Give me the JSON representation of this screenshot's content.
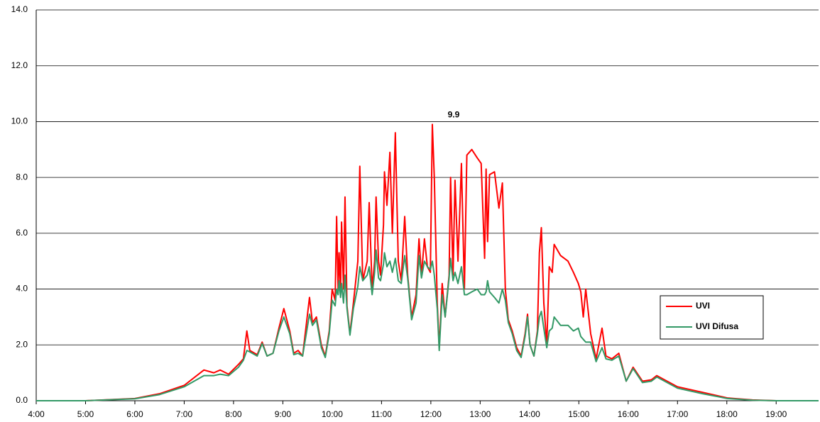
{
  "chart_data": {
    "type": "line",
    "x": [
      4.0,
      5.0,
      6.0,
      6.5,
      7.0,
      7.4,
      7.6,
      7.73,
      7.9,
      8.1,
      8.2,
      8.27,
      8.33,
      8.48,
      8.58,
      8.68,
      8.8,
      8.92,
      9.02,
      9.14,
      9.22,
      9.31,
      9.4,
      9.54,
      9.6,
      9.68,
      9.78,
      9.86,
      9.94,
      10.0,
      10.06,
      10.09,
      10.12,
      10.14,
      10.17,
      10.19,
      10.23,
      10.26,
      10.3,
      10.36,
      10.43,
      10.52,
      10.56,
      10.62,
      10.71,
      10.75,
      10.81,
      10.86,
      10.89,
      10.94,
      10.98,
      11.04,
      11.06,
      11.11,
      11.17,
      11.22,
      11.28,
      11.34,
      11.4,
      11.47,
      11.53,
      11.61,
      11.7,
      11.76,
      11.81,
      11.87,
      11.93,
      11.99,
      12.03,
      12.07,
      12.13,
      12.17,
      12.23,
      12.29,
      12.37,
      12.4,
      12.45,
      12.49,
      12.55,
      12.62,
      12.68,
      12.73,
      12.83,
      12.94,
      13.02,
      13.09,
      13.12,
      13.15,
      13.19,
      13.29,
      13.38,
      13.45,
      13.51,
      13.57,
      13.65,
      13.74,
      13.83,
      13.91,
      13.96,
      14.01,
      14.09,
      14.16,
      14.2,
      14.24,
      14.29,
      14.35,
      14.4,
      14.46,
      14.5,
      14.63,
      14.78,
      14.89,
      14.99,
      15.04,
      15.09,
      15.14,
      15.24,
      15.35,
      15.47,
      15.55,
      15.67,
      15.81,
      15.96,
      16.1,
      16.29,
      16.47,
      16.58,
      16.79,
      17.0,
      17.51,
      18.01,
      18.52,
      19.0,
      19.86
    ],
    "series": [
      {
        "name": "UVI",
        "color": "#ff0000",
        "values": [
          0,
          0,
          0.08,
          0.25,
          0.55,
          1.1,
          1.0,
          1.1,
          0.95,
          1.3,
          1.5,
          2.5,
          1.8,
          1.65,
          2.1,
          1.6,
          1.7,
          2.6,
          3.3,
          2.5,
          1.7,
          1.8,
          1.6,
          3.7,
          2.8,
          3.0,
          2.0,
          1.6,
          2.5,
          4.0,
          3.6,
          6.6,
          4.0,
          5.3,
          3.9,
          6.4,
          4.0,
          7.3,
          3.4,
          2.4,
          3.5,
          5.0,
          8.4,
          4.3,
          5.0,
          7.1,
          4.0,
          5.0,
          7.3,
          5.0,
          4.5,
          6.3,
          8.2,
          7.0,
          8.9,
          6.0,
          9.6,
          5.0,
          4.3,
          6.6,
          4.5,
          3.0,
          3.8,
          5.8,
          4.5,
          5.8,
          4.8,
          4.6,
          9.9,
          8.0,
          3.5,
          1.9,
          4.2,
          3.0,
          4.5,
          8.0,
          4.5,
          7.9,
          5.0,
          8.5,
          4.0,
          8.8,
          9.0,
          8.7,
          8.5,
          5.1,
          8.3,
          5.7,
          8.1,
          8.2,
          6.9,
          7.8,
          4.0,
          2.9,
          2.5,
          1.9,
          1.6,
          2.4,
          3.1,
          2.0,
          1.6,
          2.5,
          5.3,
          6.2,
          3.5,
          2.0,
          4.8,
          4.6,
          5.6,
          5.2,
          5.0,
          4.6,
          4.2,
          3.9,
          3.0,
          4.0,
          2.4,
          1.5,
          2.6,
          1.6,
          1.5,
          1.7,
          0.7,
          1.2,
          0.7,
          0.75,
          0.9,
          0.7,
          0.5,
          0.3,
          0.1,
          0.03,
          0,
          0
        ]
      },
      {
        "name": "UVI Difusa",
        "color": "#339966",
        "values": [
          0,
          0,
          0.07,
          0.22,
          0.5,
          0.9,
          0.9,
          0.95,
          0.9,
          1.2,
          1.45,
          1.8,
          1.75,
          1.6,
          2.05,
          1.6,
          1.7,
          2.5,
          3.0,
          2.4,
          1.65,
          1.7,
          1.6,
          3.1,
          2.7,
          2.9,
          1.9,
          1.55,
          2.4,
          3.6,
          3.4,
          4.0,
          3.8,
          4.3,
          3.7,
          4.2,
          3.5,
          4.5,
          3.3,
          2.35,
          3.3,
          4.1,
          4.8,
          4.3,
          4.5,
          4.8,
          3.8,
          4.6,
          5.4,
          4.4,
          4.3,
          4.9,
          5.3,
          4.8,
          5.0,
          4.6,
          5.1,
          4.3,
          4.2,
          5.2,
          4.4,
          2.9,
          3.5,
          5.2,
          4.4,
          5.0,
          4.8,
          4.7,
          5.0,
          4.5,
          3.3,
          1.8,
          3.8,
          3.0,
          4.4,
          5.1,
          4.3,
          4.6,
          4.2,
          4.8,
          3.8,
          3.8,
          3.9,
          4.0,
          3.8,
          3.8,
          3.9,
          4.3,
          3.9,
          3.7,
          3.5,
          4.0,
          3.6,
          2.8,
          2.4,
          1.8,
          1.55,
          2.3,
          3.0,
          2.0,
          1.6,
          2.4,
          3.0,
          3.2,
          2.6,
          1.9,
          2.5,
          2.6,
          3.0,
          2.7,
          2.7,
          2.5,
          2.6,
          2.3,
          2.2,
          2.1,
          2.1,
          1.4,
          1.9,
          1.5,
          1.45,
          1.6,
          0.7,
          1.15,
          0.65,
          0.7,
          0.85,
          0.65,
          0.45,
          0.25,
          0.08,
          0.02,
          0,
          0
        ]
      }
    ],
    "annotation": "9.9",
    "xlim": [
      4,
      19.86
    ],
    "xticks": [
      {
        "value": 4,
        "label": "4:00"
      },
      {
        "value": 5,
        "label": "5:00"
      },
      {
        "value": 6,
        "label": "6:00"
      },
      {
        "value": 7,
        "label": "7:00"
      },
      {
        "value": 8,
        "label": "8:00"
      },
      {
        "value": 9,
        "label": "9:00"
      },
      {
        "value": 10,
        "label": "10:00"
      },
      {
        "value": 11,
        "label": "11:00"
      },
      {
        "value": 12,
        "label": "12:00"
      },
      {
        "value": 13,
        "label": "13:00"
      },
      {
        "value": 14,
        "label": "14:00"
      },
      {
        "value": 15,
        "label": "15:00"
      },
      {
        "value": 16,
        "label": "16:00"
      },
      {
        "value": 17,
        "label": "17:00"
      },
      {
        "value": 18,
        "label": "18:00"
      },
      {
        "value": 19,
        "label": "19:00"
      }
    ],
    "ylim": [
      0,
      14
    ],
    "yticks": [
      {
        "value": 0,
        "label": "0.0"
      },
      {
        "value": 2,
        "label": "2.0"
      },
      {
        "value": 4,
        "label": "4.0"
      },
      {
        "value": 6,
        "label": "6.0"
      },
      {
        "value": 8,
        "label": "8.0"
      },
      {
        "value": 10,
        "label": "10.0"
      },
      {
        "value": 12,
        "label": "12.0"
      },
      {
        "value": 14,
        "label": "14.0"
      }
    ],
    "grid": true,
    "legend": "right"
  }
}
